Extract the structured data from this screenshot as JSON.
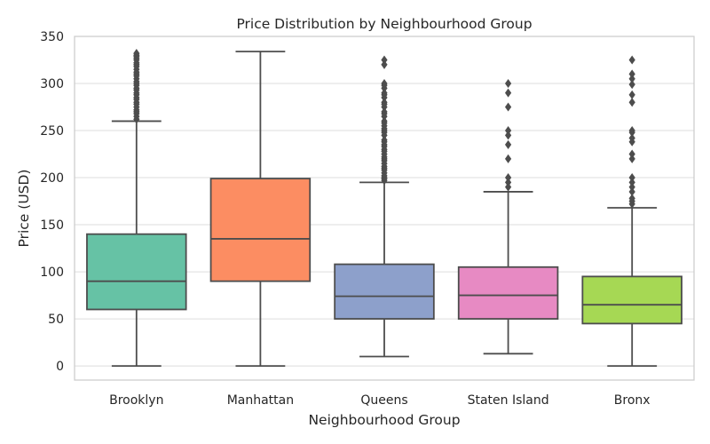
{
  "chart_data": {
    "type": "box",
    "title": "Price Distribution by Neighbourhood Group",
    "xlabel": "Neighbourhood Group",
    "ylabel": "Price (USD)",
    "ylim": [
      -15,
      350
    ],
    "yticks": [
      0,
      50,
      100,
      150,
      200,
      250,
      300,
      350
    ],
    "grid": "horizontal",
    "categories": [
      "Brooklyn",
      "Manhattan",
      "Queens",
      "Staten Island",
      "Bronx"
    ],
    "boxes": [
      {
        "name": "Brooklyn",
        "color": "#66c2a5",
        "whisker_low": 0,
        "q1": 60,
        "median": 90,
        "q3": 140,
        "whisker_high": 260,
        "outliers": [
          262,
          265,
          268,
          270,
          272,
          275,
          278,
          280,
          283,
          285,
          288,
          290,
          293,
          295,
          298,
          300,
          302,
          305,
          308,
          310,
          312,
          315,
          318,
          320,
          322,
          325,
          327,
          329,
          330,
          332
        ]
      },
      {
        "name": "Manhattan",
        "color": "#fc8d62",
        "whisker_low": 0,
        "q1": 90,
        "median": 135,
        "q3": 199,
        "whisker_high": 334,
        "outliers": []
      },
      {
        "name": "Queens",
        "color": "#8da0cb",
        "whisker_low": 10,
        "q1": 50,
        "median": 74,
        "q3": 108,
        "whisker_high": 195,
        "outliers": [
          197,
          199,
          200,
          202,
          205,
          208,
          210,
          212,
          215,
          218,
          220,
          222,
          225,
          228,
          230,
          233,
          235,
          238,
          240,
          245,
          248,
          250,
          252,
          255,
          258,
          260,
          265,
          268,
          270,
          275,
          278,
          280,
          285,
          288,
          290,
          295,
          298,
          300,
          320,
          325
        ]
      },
      {
        "name": "Staten Island",
        "color": "#e78ac3",
        "whisker_low": 13,
        "q1": 50,
        "median": 75,
        "q3": 105,
        "whisker_high": 185,
        "outliers": [
          190,
          195,
          200,
          220,
          235,
          245,
          250,
          275,
          290,
          300
        ]
      },
      {
        "name": "Bronx",
        "color": "#a6d854",
        "whisker_low": 0,
        "q1": 45,
        "median": 65,
        "q3": 95,
        "whisker_high": 168,
        "outliers": [
          172,
          175,
          178,
          185,
          190,
          195,
          200,
          220,
          225,
          238,
          242,
          248,
          250,
          280,
          288,
          299,
          305,
          310,
          325
        ]
      }
    ]
  }
}
